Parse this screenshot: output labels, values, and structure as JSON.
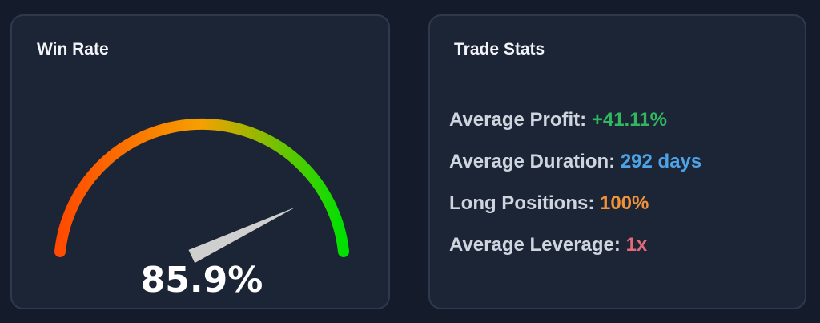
{
  "win_rate_card": {
    "title": "Win Rate",
    "value_text": "85.9%",
    "value": 85.9,
    "colors": {
      "gauge_start": "#ff4a00",
      "gauge_mid": "#f5a000",
      "gauge_end": "#00e000",
      "needle": "#cfcfcf",
      "value_text": "#ffffff"
    }
  },
  "stats_card": {
    "title": "Trade Stats",
    "items": [
      {
        "label": "Average Profit:",
        "value": "+41.11%",
        "color": "#2fb85f"
      },
      {
        "label": "Average Duration:",
        "value": "292 days",
        "color": "#4ea3e6"
      },
      {
        "label": "Long Positions:",
        "value": "100%",
        "color": "#f0923a"
      },
      {
        "label": "Average Leverage:",
        "value": "1x",
        "color": "#e46a78"
      }
    ]
  }
}
